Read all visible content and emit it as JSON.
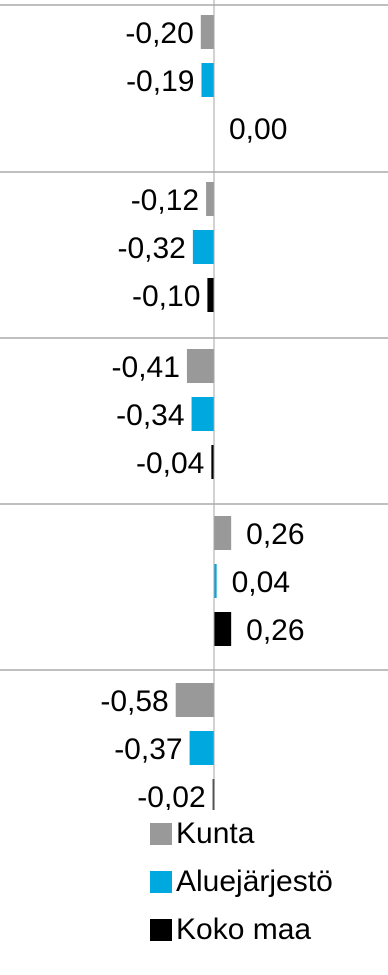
{
  "chart_data": {
    "type": "bar",
    "orientation": "horizontal",
    "categories": [
      "",
      "",
      "",
      "",
      ""
    ],
    "series": [
      {
        "name": "Kunta",
        "color": "#999999",
        "values": [
          -0.2,
          -0.12,
          -0.41,
          0.26,
          -0.58
        ],
        "labels": [
          "-0,20",
          "-0,12",
          "-0,41",
          "0,26",
          "-0,58"
        ]
      },
      {
        "name": "Aluejärjestö",
        "color": "#00a8e0",
        "values": [
          -0.19,
          -0.32,
          -0.34,
          0.04,
          -0.37
        ],
        "labels": [
          "-0,19",
          "-0,32",
          "-0,34",
          "0,04",
          "-0,37"
        ]
      },
      {
        "name": "Koko maa",
        "color": "#000000",
        "values": [
          0.0,
          -0.1,
          -0.04,
          0.26,
          -0.02
        ],
        "labels": [
          "0,00",
          "-0,10",
          "-0,04",
          "0,26",
          "-0,02"
        ]
      }
    ],
    "grid": true,
    "legend": "bottom"
  }
}
